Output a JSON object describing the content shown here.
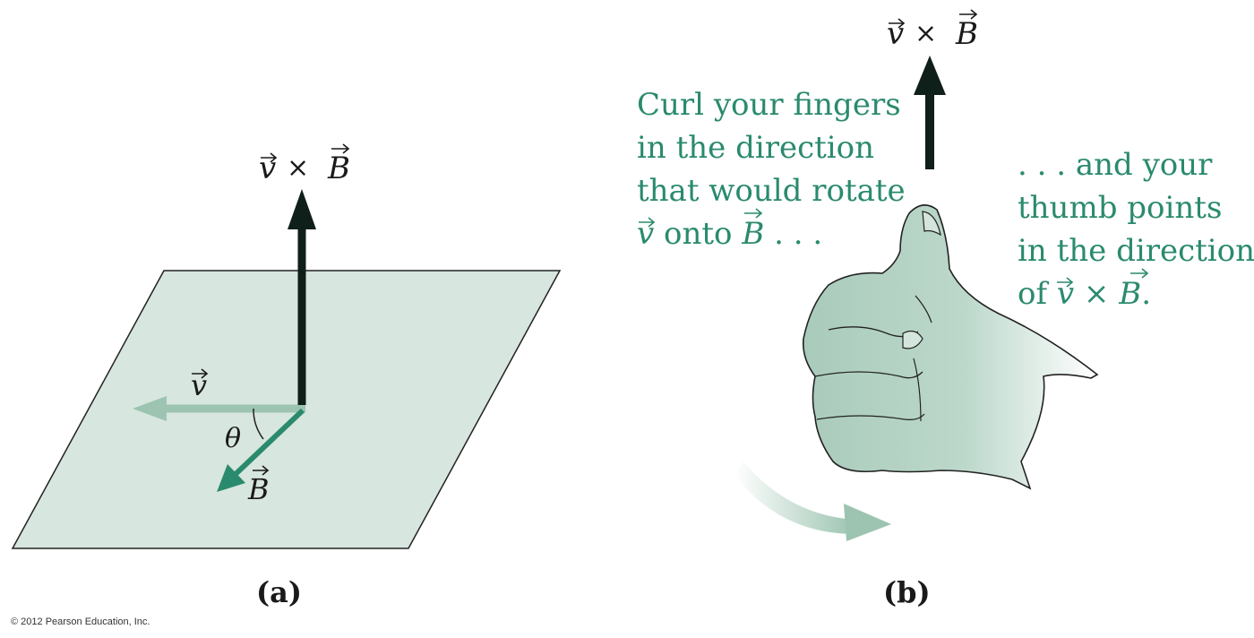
{
  "panel_a": {
    "cross_label": {
      "v": "v",
      "times": "×",
      "B": "B"
    },
    "v_label": "v",
    "theta_label": "θ",
    "B_label": "B",
    "caption": "(a)"
  },
  "panel_b": {
    "cross_label": {
      "v": "v",
      "times": "×",
      "B": "B"
    },
    "curl_text": {
      "line1": "Curl your fingers",
      "line2": "in the direction",
      "line3": "that would rotate",
      "line4_v": "v",
      "line4_mid": " onto ",
      "line4_B": "B",
      "line4_end": " . . ."
    },
    "thumb_text": {
      "line1": ". . . and your",
      "line2": "thumb points",
      "line3": "in the direction",
      "line4_of": "of ",
      "line4_v": "v",
      "line4_times": " × ",
      "line4_B": "B",
      "line4_end": "."
    },
    "caption": "(b)"
  },
  "copyright": "© 2012 Pearson Education, Inc.",
  "colors": {
    "plane_fill": "#d7e6de",
    "light_arrow": "#9cc4b1",
    "green_arrow": "#2a8a6e",
    "dark_arrow": "#0f1f19",
    "text_green": "#2a8a6e",
    "hand_fill": "#bcd8cb"
  }
}
